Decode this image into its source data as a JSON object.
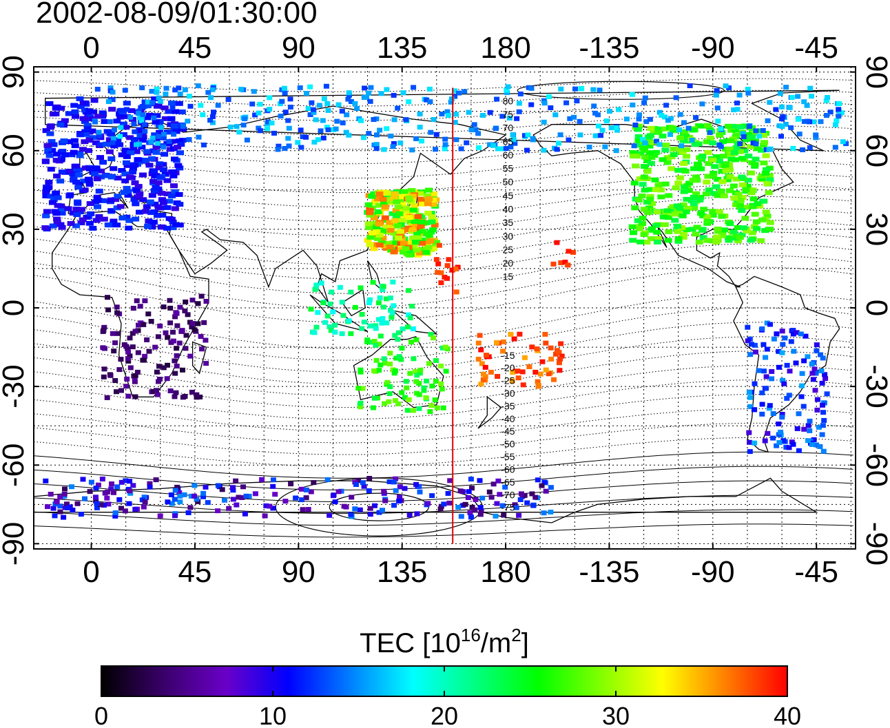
{
  "title": "2002-08-09/01:30:00",
  "lon_ticks_top": [
    "0",
    "45",
    "90",
    "135",
    "180",
    "-135",
    "-90",
    "-45"
  ],
  "lon_ticks_bottom": [
    "0",
    "45",
    "90",
    "135",
    "180",
    "-135",
    "-90",
    "-45"
  ],
  "lat_ticks_left": [
    "90",
    "60",
    "30",
    "0",
    "-30",
    "-60",
    "-90"
  ],
  "lat_ticks_right": [
    "90",
    "60",
    "30",
    "0",
    "-30",
    "-60",
    "-90"
  ],
  "contour_labels": [
    "80",
    "75",
    "70",
    "65",
    "60",
    "55",
    "50",
    "45",
    "40",
    "35",
    "30",
    "25",
    "20",
    "15",
    "-15",
    "-20",
    "-25",
    "-30",
    "-35",
    "-40",
    "-45",
    "-50",
    "-55",
    "-60",
    "-65",
    "-70",
    "-75"
  ],
  "colorbar": {
    "label_main": "TEC  [10",
    "label_sup1": "16",
    "label_mid": "/m",
    "label_sup2": "2",
    "label_end": "]",
    "ticks": [
      "0",
      "10",
      "20",
      "30",
      "40"
    ],
    "stops": [
      "#000000",
      "#3a006a",
      "#6a00c8",
      "#0000ff",
      "#0080ff",
      "#00ffff",
      "#00ff80",
      "#00ff00",
      "#80ff00",
      "#ffff00",
      "#ff8000",
      "#ff0000"
    ]
  },
  "map": {
    "projection": "equirectangular",
    "lon_range": [
      -25,
      332
    ],
    "lat_range": [
      -92,
      92
    ],
    "meridian_line_lon": 157,
    "grid": true,
    "tec_regions": [
      {
        "name": "europe",
        "lon": [
          -20,
          40
        ],
        "lat": [
          30,
          80
        ],
        "tec": [
          9,
          13
        ]
      },
      {
        "name": "north-america",
        "lon": [
          235,
          295
        ],
        "lat": [
          25,
          70
        ],
        "tec": [
          23,
          30
        ]
      },
      {
        "name": "east-asia",
        "lon": [
          120,
          150
        ],
        "lat": [
          20,
          45
        ],
        "tec": [
          24,
          38
        ]
      },
      {
        "name": "western-pacific",
        "lon": [
          150,
          160
        ],
        "lat": [
          5,
          25
        ],
        "tec": [
          36,
          40
        ]
      },
      {
        "name": "southwest-pacific",
        "lon": [
          165,
          205
        ],
        "lat": [
          -30,
          -10
        ],
        "tec": [
          35,
          40
        ]
      },
      {
        "name": "hawaii",
        "lon": [
          200,
          210
        ],
        "lat": [
          15,
          25
        ],
        "tec": [
          38,
          40
        ]
      },
      {
        "name": "australia",
        "lon": [
          115,
          155
        ],
        "lat": [
          -40,
          -10
        ],
        "tec": [
          22,
          29
        ]
      },
      {
        "name": "indonesia",
        "lon": [
          95,
          140
        ],
        "lat": [
          -10,
          10
        ],
        "tec": [
          18,
          25
        ]
      },
      {
        "name": "africa",
        "lon": [
          5,
          50
        ],
        "lat": [
          -35,
          5
        ],
        "tec": [
          2,
          6
        ]
      },
      {
        "name": "south-america",
        "lon": [
          285,
          320
        ],
        "lat": [
          -55,
          -5
        ],
        "tec": [
          8,
          16
        ]
      },
      {
        "name": "antarctica",
        "lon": [
          -20,
          200
        ],
        "lat": [
          -80,
          -65
        ],
        "tec": [
          3,
          15
        ]
      },
      {
        "name": "arctic",
        "lon": [
          0,
          330
        ],
        "lat": [
          60,
          85
        ],
        "tec": [
          12,
          18
        ]
      }
    ]
  }
}
